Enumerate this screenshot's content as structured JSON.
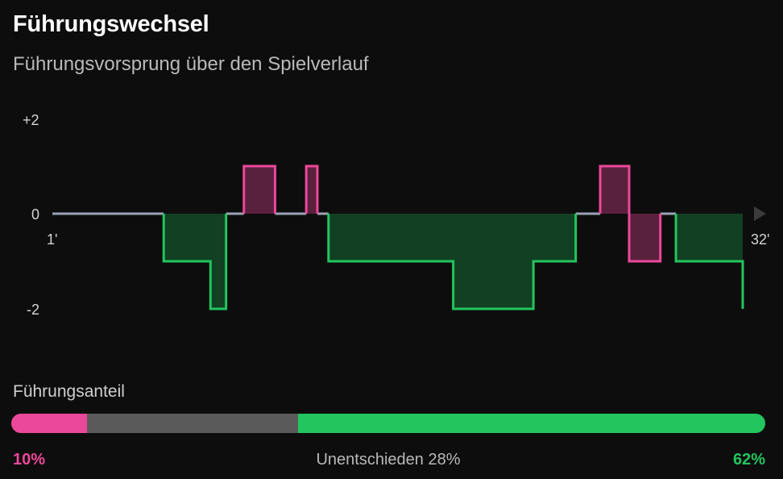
{
  "header": {
    "title": "Führungswechsel",
    "subtitle": "Führungsvorsprung über den Spielverlauf"
  },
  "colors": {
    "home": "#ec4899",
    "away": "#22c55e",
    "draw": "#5a5a5a",
    "level_line": "#9aa3b5"
  },
  "chart_data": {
    "type": "area",
    "step": true,
    "x_tick_labels": [
      "1'",
      "32'"
    ],
    "y_tick_labels": [
      "+2",
      "0",
      "-2"
    ],
    "ylim": [
      -2,
      2
    ],
    "xlim": [
      1,
      32
    ],
    "series": [
      {
        "values": [
          [
            1,
            0
          ],
          [
            6,
            0
          ],
          [
            6,
            -1
          ],
          [
            8.1,
            -1
          ],
          [
            8.1,
            -2
          ],
          [
            8.8,
            -2
          ],
          [
            8.8,
            0
          ],
          [
            9.6,
            0
          ],
          [
            9.6,
            1
          ],
          [
            11,
            1
          ],
          [
            11,
            0
          ],
          [
            12.4,
            0
          ],
          [
            12.4,
            1
          ],
          [
            12.9,
            1
          ],
          [
            12.9,
            0
          ],
          [
            13.4,
            0
          ],
          [
            13.4,
            -1
          ],
          [
            19,
            -1
          ],
          [
            19,
            -2
          ],
          [
            22.6,
            -2
          ],
          [
            22.6,
            -1
          ],
          [
            24.5,
            -1
          ],
          [
            24.5,
            0
          ],
          [
            25.6,
            0
          ],
          [
            25.6,
            1
          ],
          [
            26.9,
            1
          ],
          [
            26.9,
            -1
          ],
          [
            28.3,
            -1
          ],
          [
            28.3,
            0
          ],
          [
            29,
            0
          ],
          [
            29,
            -1
          ],
          [
            32,
            -1
          ],
          [
            32,
            -2
          ]
        ]
      }
    ]
  },
  "share": {
    "label": "Führungsanteil",
    "home_pct": 10,
    "draw_pct": 28,
    "away_pct": 62,
    "home_text": "10%",
    "draw_text": "Unentschieden 28%",
    "away_text": "62%"
  }
}
